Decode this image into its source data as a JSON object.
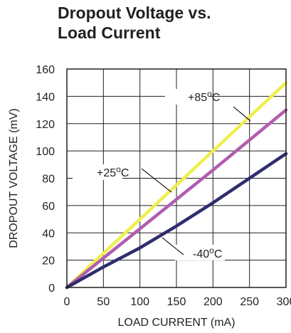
{
  "chart_data": {
    "type": "line",
    "title_lines": [
      "Dropout Voltage vs.",
      "Load Current"
    ],
    "xlabel": "LOAD CURRENT (mA)",
    "ylabel": "DROPOUT VOLTAGE (mV)",
    "xlim": [
      0,
      300
    ],
    "ylim": [
      0,
      160
    ],
    "x_ticks": [
      0,
      50,
      100,
      150,
      200,
      250,
      300
    ],
    "y_ticks": [
      0,
      20,
      40,
      60,
      80,
      100,
      120,
      140,
      160
    ],
    "grid": true,
    "series": [
      {
        "name": "+85oC",
        "color": "#f0ee50",
        "x": [
          0,
          100,
          200,
          300
        ],
        "y": [
          0,
          50,
          100,
          150
        ]
      },
      {
        "name": "+25oC",
        "color": "#b05cb0",
        "x": [
          0,
          100,
          200,
          300
        ],
        "y": [
          0,
          43,
          86,
          130
        ]
      },
      {
        "name": "-40oC",
        "color": "#2e2d6e",
        "x": [
          0,
          50,
          100,
          150,
          200,
          250,
          300
        ],
        "y": [
          0,
          15,
          29,
          45,
          62,
          80,
          98
        ]
      }
    ],
    "annotations": [
      {
        "series": "+85oC",
        "text_main": "+85",
        "text_sup": "o",
        "text_unit": "C"
      },
      {
        "series": "+25oC",
        "text_main": "+25",
        "text_sup": "o",
        "text_unit": "C"
      },
      {
        "series": "-40oC",
        "text_main": "-40",
        "text_sup": "o",
        "text_unit": "C"
      }
    ]
  }
}
